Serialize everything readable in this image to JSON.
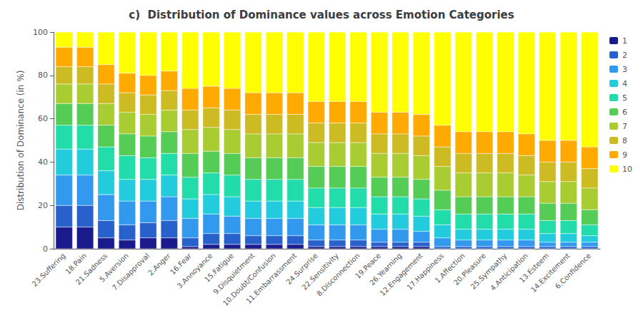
{
  "chart_data": {
    "type": "bar",
    "title": "c)  Distribution of Dominance values across Emotion Categories",
    "ylabel": "Distribution of Dominance (in %)",
    "categories": [
      "23.Suffering",
      "18.Pain",
      "21.Sadness",
      "5.Aversion",
      "7.Disapproval",
      "2.Anger",
      "16.Fear",
      "3.Annoyance",
      "15.Fatigue",
      "9.Disquietment",
      "10.Doubt/Confusion",
      "11.Embarrassment",
      "24.Surprise",
      "22.Sensitivity",
      "8.Disconnection",
      "19.Peace",
      "26.Yearning",
      "12.Engagement",
      "17.Happiness",
      "1.Affection",
      "20.Pleasure",
      "25.Sympathy",
      "4.Anticipation",
      "13.Esteem",
      "14.Excitement",
      "6.Confidence"
    ],
    "series": [
      {
        "name": "1",
        "color": "#1a1a8c",
        "values": [
          10,
          10,
          5,
          4,
          5,
          5,
          1,
          2,
          2,
          2,
          2,
          2,
          1,
          1,
          1,
          1,
          1,
          1,
          0,
          0,
          0,
          0,
          0,
          0,
          0,
          0
        ]
      },
      {
        "name": "2",
        "color": "#2860cc",
        "values": [
          10,
          10,
          8,
          7,
          7,
          8,
          4,
          5,
          5,
          4,
          4,
          4,
          3,
          3,
          3,
          2,
          2,
          2,
          1,
          1,
          1,
          1,
          1,
          1,
          1,
          1
        ]
      },
      {
        "name": "3",
        "color": "#3399ee",
        "values": [
          14,
          14,
          12,
          11,
          10,
          11,
          9,
          9,
          8,
          8,
          8,
          8,
          7,
          7,
          7,
          6,
          6,
          5,
          4,
          3,
          3,
          3,
          3,
          2,
          2,
          2
        ]
      },
      {
        "name": "4",
        "color": "#22ccdd",
        "values": [
          12,
          12,
          11,
          10,
          10,
          10,
          9,
          9,
          9,
          8,
          8,
          8,
          8,
          8,
          8,
          7,
          7,
          7,
          6,
          5,
          5,
          5,
          5,
          4,
          4,
          3
        ]
      },
      {
        "name": "5",
        "color": "#22ddaa",
        "values": [
          11,
          11,
          11,
          11,
          10,
          10,
          10,
          10,
          10,
          10,
          10,
          10,
          9,
          9,
          9,
          8,
          8,
          8,
          7,
          7,
          7,
          7,
          7,
          6,
          6,
          5
        ]
      },
      {
        "name": "6",
        "color": "#55cc55",
        "values": [
          10,
          10,
          10,
          10,
          10,
          10,
          11,
          10,
          10,
          10,
          10,
          10,
          10,
          10,
          10,
          9,
          9,
          9,
          9,
          8,
          8,
          8,
          8,
          8,
          8,
          7
        ]
      },
      {
        "name": "7",
        "color": "#aacc33",
        "values": [
          9,
          9,
          10,
          10,
          10,
          10,
          11,
          11,
          11,
          11,
          11,
          11,
          11,
          11,
          11,
          11,
          11,
          11,
          11,
          11,
          11,
          11,
          10,
          10,
          10,
          10
        ]
      },
      {
        "name": "8",
        "color": "#ccbb22",
        "values": [
          8,
          8,
          9,
          9,
          9,
          9,
          9,
          9,
          9,
          9,
          9,
          9,
          9,
          9,
          9,
          9,
          9,
          9,
          9,
          9,
          9,
          9,
          9,
          9,
          9,
          9
        ]
      },
      {
        "name": "9",
        "color": "#ffaa00",
        "values": [
          9,
          9,
          9,
          9,
          9,
          9,
          10,
          10,
          10,
          10,
          10,
          10,
          10,
          10,
          10,
          10,
          10,
          10,
          10,
          10,
          10,
          10,
          10,
          10,
          10,
          10
        ]
      },
      {
        "name": "10",
        "color": "#ffff00",
        "values": [
          7,
          7,
          15,
          19,
          20,
          18,
          26,
          25,
          26,
          28,
          28,
          28,
          32,
          32,
          32,
          37,
          37,
          38,
          43,
          46,
          46,
          46,
          47,
          50,
          50,
          53
        ]
      }
    ],
    "ylim": [
      0,
      100
    ],
    "yticks": [
      0,
      20,
      40,
      60,
      80,
      100
    ],
    "stacked": true,
    "legend": "upper right",
    "grid": false
  }
}
